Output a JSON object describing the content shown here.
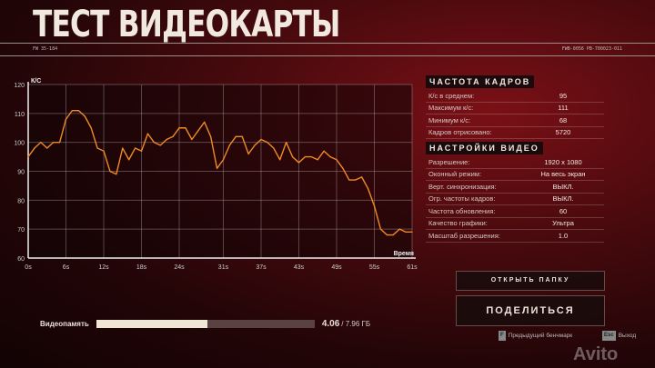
{
  "header": {
    "title": "ТЕСТ ВИДЕОКАРТЫ",
    "code_left": "FW 35-184",
    "code_right": "FWB-0056 PB-700023-011"
  },
  "chart_data": {
    "type": "line",
    "ylabel": "К/С",
    "xlabel": "Время",
    "ylim": [
      60,
      120
    ],
    "xlim": [
      0,
      61
    ],
    "yticks": [
      60,
      70,
      80,
      90,
      100,
      110,
      120
    ],
    "xticks": [
      "0s",
      "6s",
      "12s",
      "18s",
      "24s",
      "31s",
      "37s",
      "43s",
      "49s",
      "55s",
      "61s"
    ],
    "xtick_values": [
      0,
      6,
      12,
      18,
      24,
      31,
      37,
      43,
      49,
      55,
      61
    ],
    "grid": true,
    "line_color": "#f08a24",
    "x": [
      0,
      1,
      2,
      3,
      4,
      5,
      6,
      7,
      8,
      9,
      10,
      11,
      12,
      13,
      14,
      15,
      16,
      17,
      18,
      19,
      20,
      21,
      22,
      23,
      24,
      25,
      26,
      27,
      28,
      29,
      30,
      31,
      32,
      33,
      34,
      35,
      36,
      37,
      38,
      39,
      40,
      41,
      42,
      43,
      44,
      45,
      46,
      47,
      48,
      49,
      50,
      51,
      52,
      53,
      54,
      55,
      56,
      57,
      58,
      59,
      60,
      61
    ],
    "values": [
      95,
      98,
      100,
      98,
      100,
      100,
      108,
      111,
      111,
      109,
      105,
      98,
      97,
      90,
      89,
      98,
      94,
      98,
      97,
      103,
      100,
      99,
      101,
      102,
      105,
      105,
      101,
      104,
      107,
      102,
      91,
      94,
      99,
      102,
      102,
      96,
      99,
      101,
      100,
      98,
      94,
      100,
      95,
      93,
      95,
      95,
      94,
      97,
      95,
      94,
      91,
      87,
      87,
      88,
      84,
      78,
      70,
      68,
      68,
      70,
      69,
      69
    ]
  },
  "fps": {
    "heading": "ЧАСТОТА КАДРОВ",
    "rows": [
      {
        "k": "К/с в среднем:",
        "v": "95"
      },
      {
        "k": "Максимум к/с:",
        "v": "111"
      },
      {
        "k": "Минимум к/с:",
        "v": "68"
      },
      {
        "k": "Кадров отрисовано:",
        "v": "5720"
      }
    ]
  },
  "video": {
    "heading": "НАСТРОЙКИ ВИДЕО",
    "rows": [
      {
        "k": "Разрешение:",
        "v": "1920 x 1080"
      },
      {
        "k": "Оконный режим:",
        "v": "На весь экран"
      },
      {
        "k": "Верт. синхронизация:",
        "v": "ВЫКЛ."
      },
      {
        "k": "Огр. частоты кадров:",
        "v": "ВЫКЛ."
      },
      {
        "k": "Частота обновления:",
        "v": "60"
      },
      {
        "k": "Качество графики:",
        "v": "Ультра"
      },
      {
        "k": "Масштаб разрешения:",
        "v": "1.0"
      }
    ]
  },
  "buttons": {
    "open_folder": "ОТКРЫТЬ ПАПКУ",
    "share": "ПОДЕЛИТЬСЯ"
  },
  "vram": {
    "label": "Видеопамять",
    "used": "4.06",
    "total": "/ 7.96 ГБ",
    "fraction": 0.51
  },
  "footer": {
    "prev_key": "F",
    "prev_label": "Предыдущий бенчмарк",
    "exit_key": "Esc",
    "exit_label": "Выход"
  },
  "watermark": "Avito"
}
